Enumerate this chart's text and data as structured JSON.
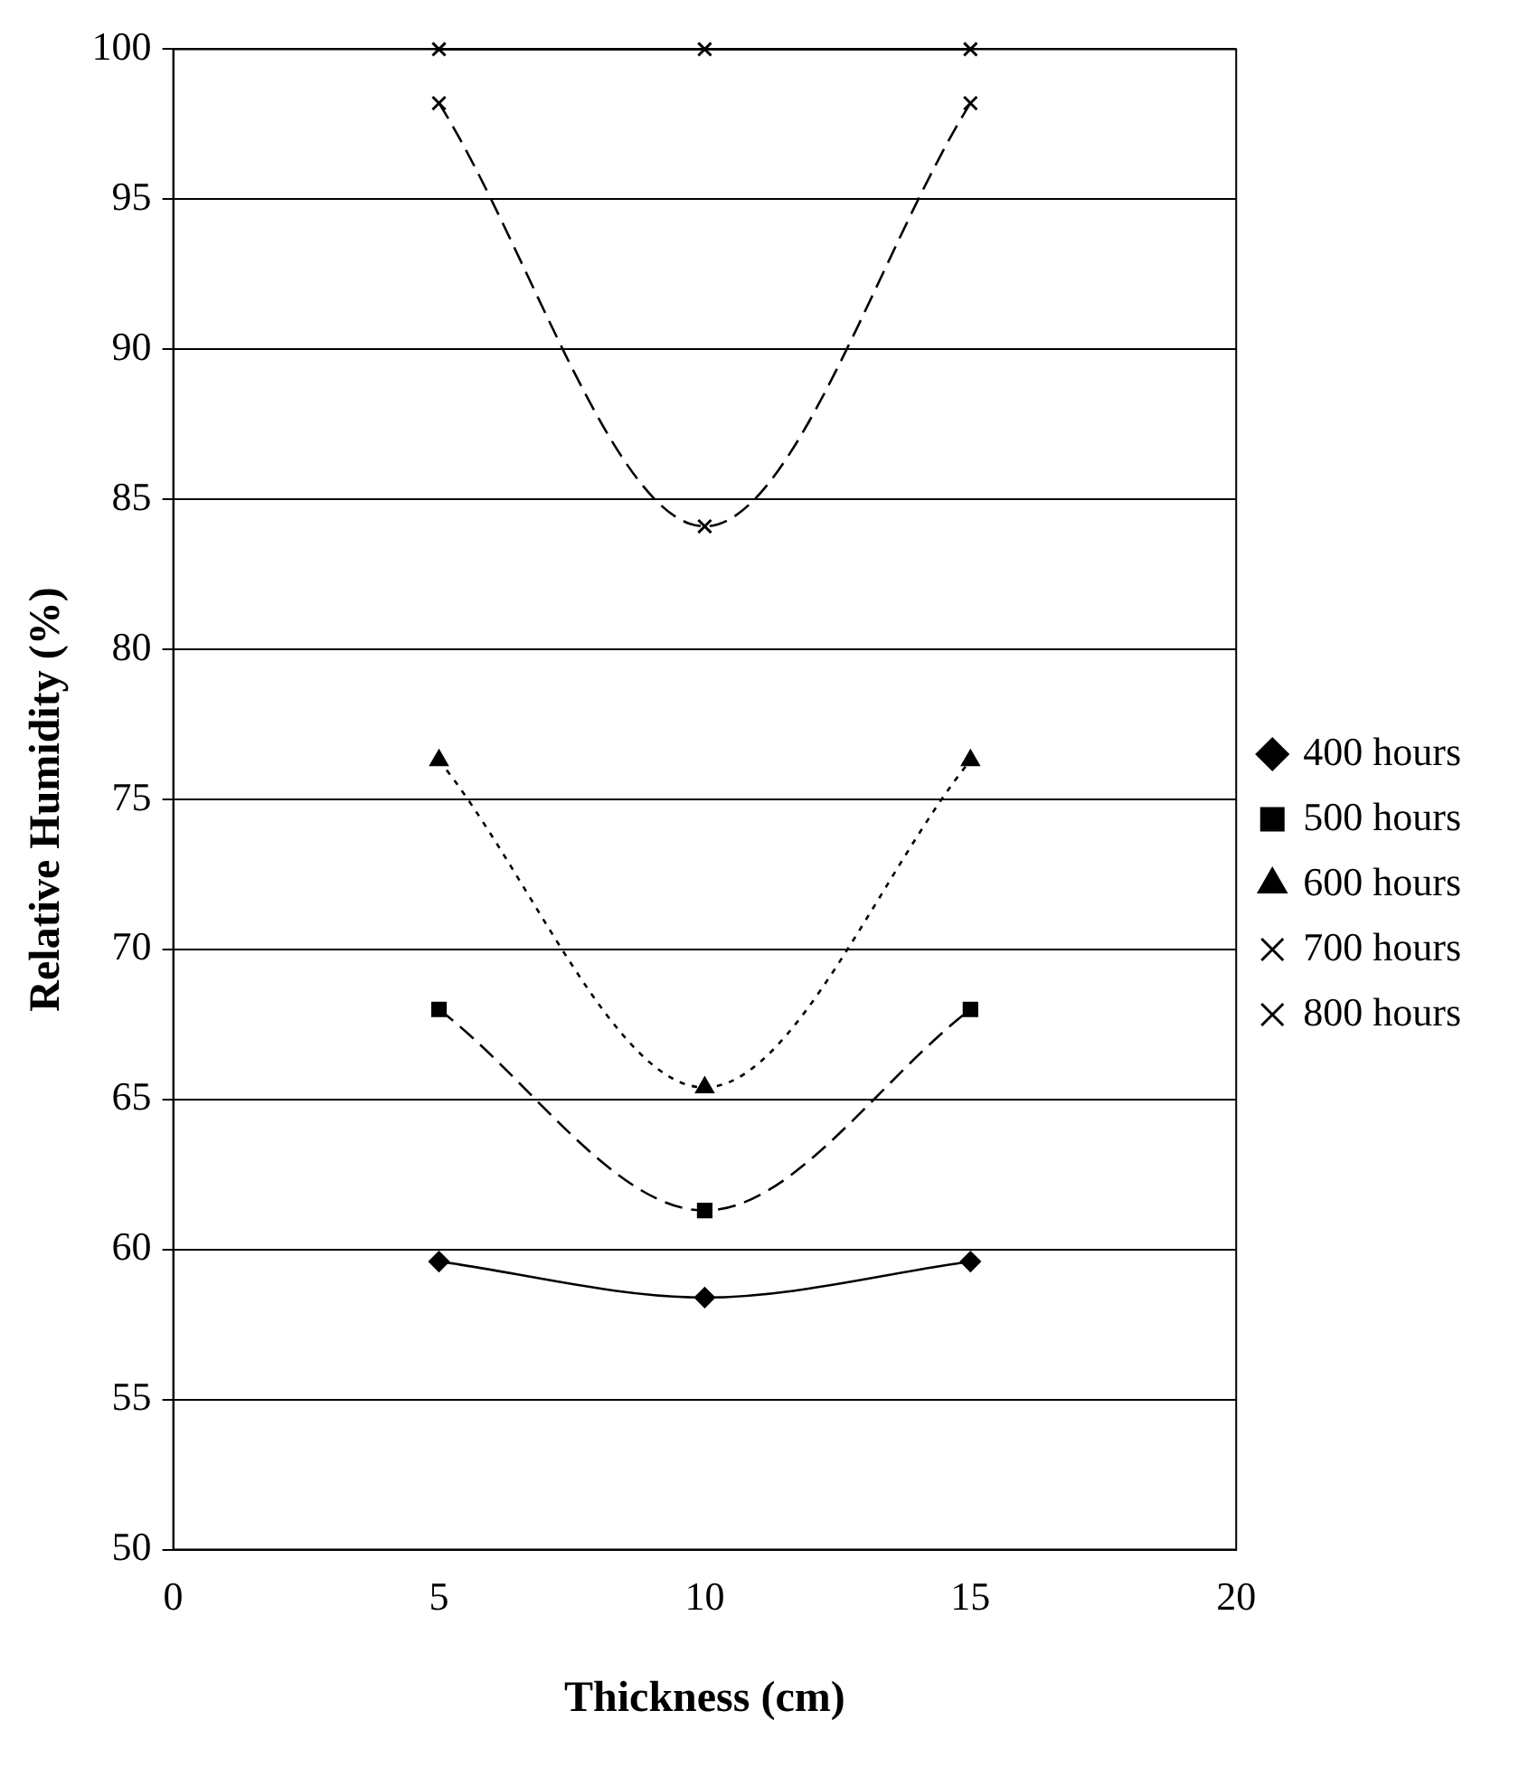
{
  "chart_data": {
    "type": "line",
    "xlabel": "Thickness (cm)",
    "ylabel": "Relative Humidity (%)",
    "x": [
      5,
      10,
      15
    ],
    "series": [
      {
        "name": "400 hours",
        "color": "#000000",
        "values": [
          59.6,
          58.4,
          59.6
        ],
        "marker": "diamond",
        "line_style": "solid"
      },
      {
        "name": "500 hours",
        "color": "#000000",
        "values": [
          68,
          61.3,
          68
        ],
        "marker": "square",
        "line_style": "dashed"
      },
      {
        "name": "600 hours",
        "color": "#000000",
        "values": [
          76.3,
          65.4,
          76.3
        ],
        "marker": "triangle",
        "line_style": "dotted"
      },
      {
        "name": "700 hours",
        "color": "#000000",
        "values": [
          98.2,
          84.1,
          98.2
        ],
        "marker": "cross",
        "line_style": "dashed"
      },
      {
        "name": "800 hours",
        "color": "#000000",
        "values": [
          100,
          100,
          100
        ],
        "marker": "cross",
        "line_style": "solid"
      }
    ],
    "xlim": [
      0,
      20
    ],
    "xticks": [
      0,
      5,
      10,
      15,
      20
    ],
    "ylim": [
      50,
      100
    ],
    "yticks": [
      50,
      55,
      60,
      65,
      70,
      75,
      80,
      85,
      90,
      95,
      100
    ],
    "grid": "y",
    "legend": "right"
  }
}
